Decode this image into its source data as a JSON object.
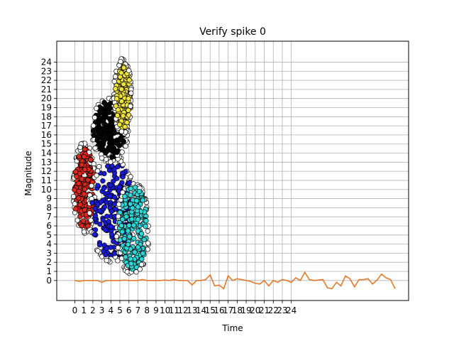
{
  "chart_data": {
    "type": "scatter",
    "title": "Verify spike 0",
    "xlabel": "Time",
    "ylabel": "Magnitude",
    "xlim": [
      -2,
      37
    ],
    "ylim": [
      -2.2,
      26.3
    ],
    "grid": true,
    "x_ticks": [
      0,
      1,
      2,
      3,
      4,
      5,
      6,
      7,
      8,
      9,
      10,
      11,
      12,
      13,
      14,
      15,
      16,
      17,
      18,
      19,
      20,
      21,
      22,
      23,
      24
    ],
    "y_ticks": [
      0,
      1,
      2,
      3,
      4,
      5,
      6,
      7,
      8,
      9,
      10,
      11,
      12,
      13,
      14,
      15,
      16,
      17,
      18,
      19,
      20,
      21,
      22,
      23,
      24
    ],
    "scatter_groups": [
      {
        "color": "#e3261b",
        "x_range": [
          -0.2,
          2.3
        ],
        "y_range": [
          5.0,
          15.2
        ]
      },
      {
        "color": "#1a1adb",
        "x_range": [
          1.5,
          6.8
        ],
        "y_range": [
          1.8,
          14.0
        ]
      },
      {
        "color": "#050505",
        "x_range": [
          1.8,
          6.0
        ],
        "y_range": [
          13.0,
          20.2
        ]
      },
      {
        "color": "#f0e43a",
        "x_range": [
          4.3,
          6.3
        ],
        "y_range": [
          16.0,
          24.5
        ]
      },
      {
        "color": "#2fd6d6",
        "x_range": [
          4.6,
          8.3
        ],
        "y_range": [
          0.5,
          11.0
        ]
      }
    ],
    "series": [
      {
        "color": "#e07a2a",
        "x": [
          0,
          0.5,
          1,
          1.5,
          2,
          2.5,
          3,
          3.5,
          4,
          4.5,
          5,
          5.5,
          6,
          6.5,
          7,
          7.5,
          8,
          8.5,
          9,
          9.5,
          10,
          10.5,
          11,
          11.5,
          12,
          12.5,
          13,
          13.5,
          14,
          14.5,
          15,
          15.5,
          16,
          16.5,
          17,
          17.5,
          18,
          18.5,
          19,
          19.5,
          20,
          20.5,
          21,
          21.5,
          22,
          22.5,
          23,
          23.5,
          24,
          24.5,
          25,
          25.5,
          26,
          26.5,
          27,
          27.5,
          28,
          28.5,
          29,
          29.5,
          30,
          30.5,
          31,
          31.5,
          32,
          32.5,
          33,
          33.5,
          34,
          34.5,
          35,
          35.5
        ],
        "y": [
          0,
          -0.1,
          0,
          0,
          0,
          0,
          -0.2,
          0,
          0,
          0,
          0,
          0.05,
          0,
          0,
          0,
          0.1,
          0,
          0,
          0,
          0,
          0.05,
          0,
          0.1,
          0,
          0,
          0,
          -0.5,
          0,
          0,
          0.1,
          0.6,
          -0.6,
          -0.5,
          -0.9,
          0.5,
          0,
          0.2,
          0.1,
          0,
          -0.1,
          -0.3,
          -0.4,
          0,
          -0.6,
          0,
          -0.2,
          0.1,
          0,
          -0.2,
          0.3,
          0,
          0.9,
          0.1,
          0,
          0.05,
          0.1,
          -0.8,
          -0.9,
          -0.2,
          -0.6,
          0.5,
          0.2,
          -0.7,
          0.1,
          0.1,
          0.2,
          -0.4,
          0.05,
          0.7,
          0.3,
          0.1,
          -0.9
        ]
      }
    ]
  }
}
